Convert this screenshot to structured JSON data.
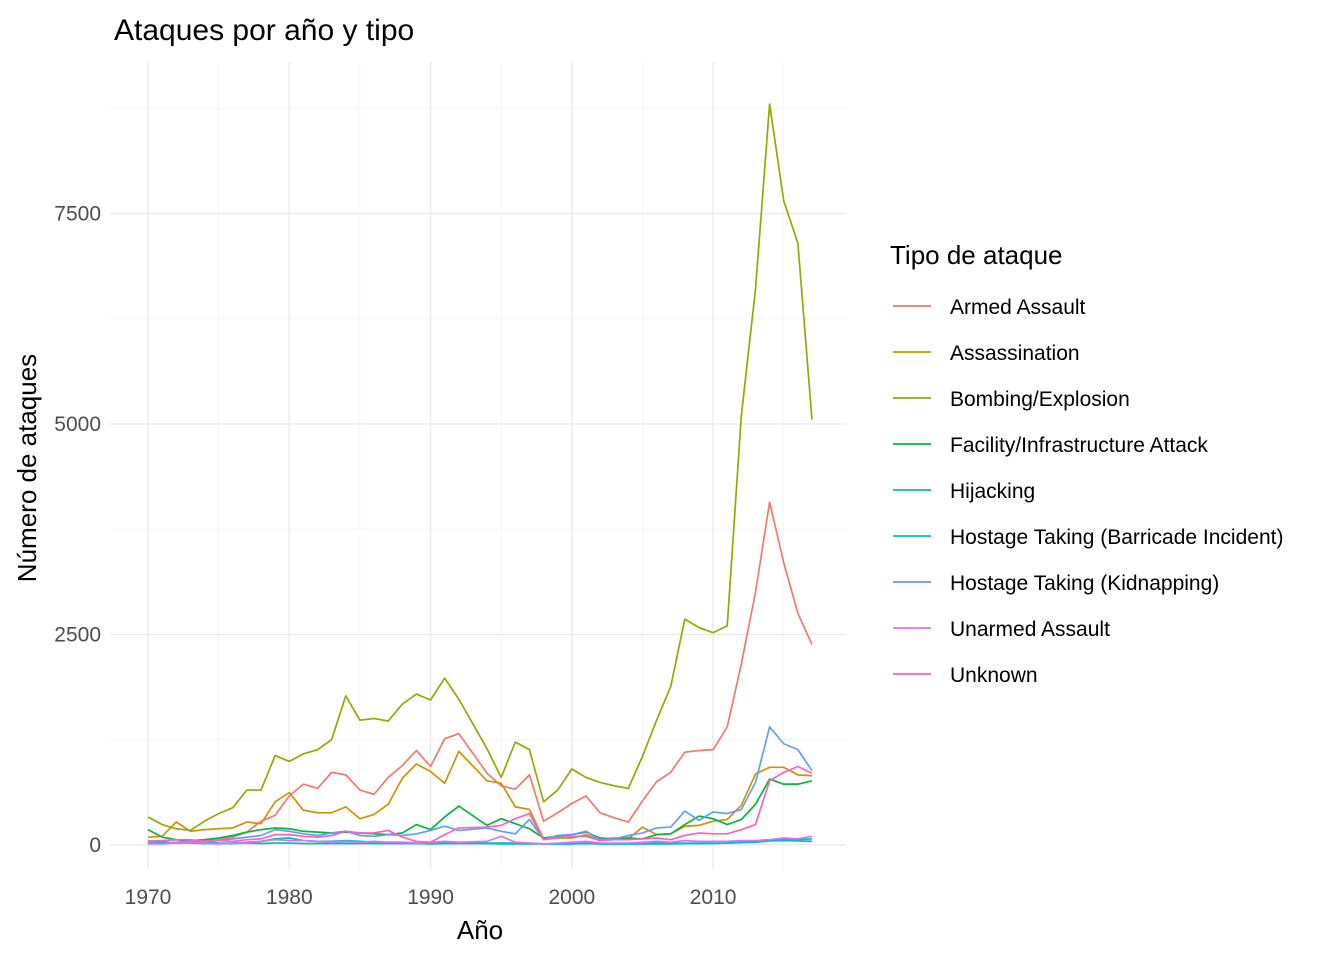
{
  "chart_data": {
    "type": "line",
    "title": "Ataques por año y tipo",
    "xlabel": "Año",
    "ylabel": "Número de ataques",
    "xlim": [
      1970,
      2017
    ],
    "ylim": [
      -300,
      9300
    ],
    "x_ticks": [
      1970,
      1980,
      1990,
      2000,
      2010
    ],
    "y_ticks": [
      0,
      2500,
      5000,
      7500
    ],
    "grid": true,
    "legend": {
      "title": "Tipo de ataque",
      "position": "right"
    },
    "x": [
      1970,
      1971,
      1972,
      1973,
      1974,
      1975,
      1976,
      1977,
      1978,
      1979,
      1980,
      1981,
      1982,
      1983,
      1984,
      1985,
      1986,
      1987,
      1988,
      1989,
      1990,
      1991,
      1992,
      1994,
      1995,
      1996,
      1997,
      1998,
      1999,
      2000,
      2001,
      2002,
      2003,
      2004,
      2005,
      2006,
      2007,
      2008,
      2009,
      2010,
      2011,
      2012,
      2013,
      2014,
      2015,
      2016,
      2017
    ],
    "series": [
      {
        "name": "Armed Assault",
        "color": "#F8766D",
        "values": [
          50,
          40,
          60,
          40,
          50,
          60,
          90,
          150,
          280,
          350,
          580,
          720,
          670,
          860,
          830,
          650,
          600,
          800,
          940,
          1120,
          930,
          1260,
          1320,
          850,
          700,
          660,
          830,
          280,
          380,
          490,
          580,
          380,
          320,
          270,
          520,
          750,
          860,
          1100,
          1120,
          1130,
          1400,
          2150,
          3000,
          4070,
          3350,
          2750,
          2380
        ]
      },
      {
        "name": "Assassination",
        "color": "#D39200",
        "values": [
          90,
          100,
          270,
          160,
          180,
          190,
          200,
          270,
          250,
          510,
          620,
          410,
          380,
          380,
          450,
          310,
          360,
          480,
          790,
          960,
          870,
          730,
          1110,
          760,
          730,
          450,
          420,
          70,
          80,
          80,
          120,
          60,
          80,
          70,
          210,
          120,
          130,
          220,
          230,
          280,
          300,
          470,
          840,
          920,
          920,
          830,
          820
        ]
      },
      {
        "name": "Bombing/Explosion",
        "color": "#93AA00",
        "values": [
          330,
          240,
          190,
          170,
          280,
          370,
          440,
          650,
          650,
          1060,
          990,
          1080,
          1130,
          1250,
          1770,
          1480,
          1500,
          1470,
          1670,
          1790,
          1720,
          1980,
          1730,
          1140,
          800,
          1220,
          1130,
          510,
          650,
          900,
          800,
          740,
          700,
          670,
          1050,
          1480,
          1880,
          2680,
          2580,
          2520,
          2600,
          5100,
          6600,
          8800,
          7650,
          7150,
          5050
        ]
      },
      {
        "name": "Facility/Infrastructure Attack",
        "color": "#00BA38",
        "values": [
          180,
          90,
          60,
          50,
          60,
          80,
          110,
          150,
          180,
          200,
          190,
          160,
          150,
          140,
          150,
          140,
          130,
          120,
          140,
          240,
          180,
          330,
          460,
          230,
          310,
          250,
          190,
          80,
          100,
          120,
          150,
          80,
          70,
          80,
          70,
          120,
          130,
          240,
          340,
          310,
          240,
          300,
          480,
          780,
          720,
          720,
          760
        ]
      },
      {
        "name": "Hijacking",
        "color": "#00C19F",
        "values": [
          20,
          20,
          20,
          20,
          15,
          15,
          15,
          20,
          15,
          20,
          20,
          15,
          15,
          15,
          15,
          15,
          15,
          15,
          15,
          15,
          10,
          15,
          15,
          15,
          10,
          10,
          10,
          10,
          10,
          10,
          15,
          10,
          10,
          10,
          10,
          10,
          10,
          15,
          15,
          15,
          20,
          25,
          30,
          45,
          50,
          45,
          40
        ]
      },
      {
        "name": "Hostage Taking (Barricade Incident)",
        "color": "#00B9E3",
        "values": [
          20,
          30,
          20,
          30,
          40,
          20,
          20,
          30,
          40,
          70,
          80,
          50,
          40,
          40,
          50,
          40,
          30,
          30,
          30,
          20,
          20,
          30,
          20,
          20,
          20,
          20,
          20,
          10,
          10,
          10,
          20,
          10,
          10,
          10,
          10,
          20,
          20,
          20,
          20,
          20,
          20,
          30,
          40,
          50,
          60,
          60,
          70
        ]
      },
      {
        "name": "Hostage Taking (Kidnapping)",
        "color": "#619CFF",
        "values": [
          20,
          10,
          30,
          40,
          40,
          50,
          70,
          90,
          110,
          180,
          160,
          130,
          110,
          140,
          160,
          110,
          100,
          120,
          110,
          130,
          170,
          220,
          170,
          200,
          160,
          130,
          300,
          60,
          110,
          120,
          160,
          60,
          70,
          110,
          140,
          200,
          210,
          400,
          290,
          390,
          370,
          420,
          740,
          1400,
          1200,
          1130,
          880
        ]
      },
      {
        "name": "Unarmed Assault",
        "color": "#DB72FB",
        "values": [
          10,
          10,
          20,
          30,
          20,
          10,
          20,
          20,
          40,
          60,
          50,
          50,
          40,
          30,
          40,
          30,
          40,
          30,
          30,
          20,
          30,
          40,
          30,
          40,
          100,
          30,
          20,
          10,
          20,
          30,
          40,
          20,
          20,
          20,
          30,
          40,
          30,
          50,
          40,
          40,
          40,
          50,
          50,
          60,
          80,
          70,
          100
        ]
      },
      {
        "name": "Unknown",
        "color": "#FF61C3",
        "values": [
          40,
          50,
          60,
          60,
          40,
          50,
          40,
          60,
          70,
          120,
          120,
          100,
          90,
          110,
          160,
          140,
          140,
          170,
          90,
          40,
          30,
          120,
          200,
          210,
          230,
          310,
          370,
          60,
          80,
          100,
          100,
          50,
          60,
          60,
          70,
          80,
          60,
          110,
          140,
          130,
          130,
          180,
          240,
          760,
          860,
          930,
          850
        ]
      }
    ]
  }
}
